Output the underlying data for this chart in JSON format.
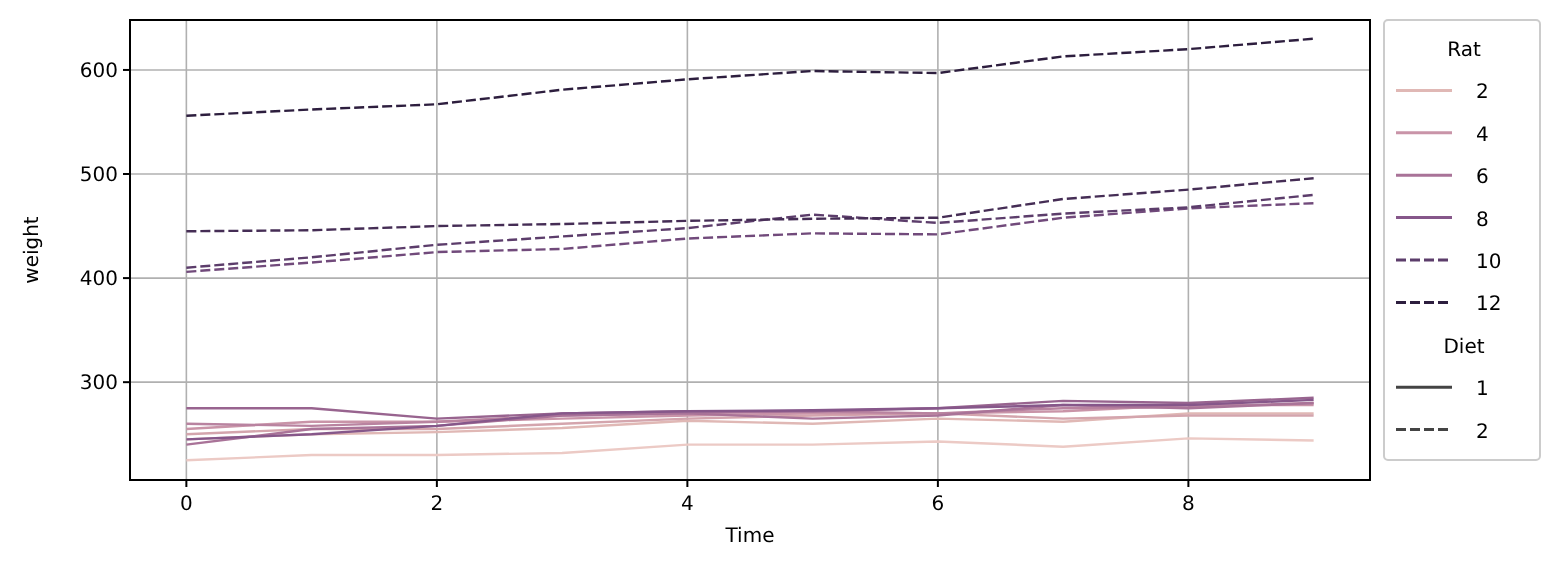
{
  "chart_data": {
    "type": "line",
    "xlabel": "Time",
    "ylabel": "weight",
    "legend_title": "Rat",
    "annotations": [
      "Diet"
    ],
    "x": [
      0,
      1,
      2,
      3,
      4,
      5,
      6,
      7,
      8,
      9
    ],
    "xlim": [
      -0.45,
      9.45
    ],
    "xticks": [
      0,
      2,
      4,
      6,
      8
    ],
    "ylim": [
      206,
      648
    ],
    "yticks": [
      300,
      400,
      500,
      600
    ],
    "grid": true,
    "legend": "right",
    "series": [
      {
        "color": "#eccac5",
        "line_style": "solid",
        "values": [
          225,
          230,
          230,
          232,
          240,
          240,
          243,
          238,
          246,
          244
        ]
      },
      {
        "name": "2",
        "color": "#e0b8b5",
        "line_style": "solid",
        "values": [
          245,
          250,
          252,
          256,
          263,
          260,
          265,
          262,
          270,
          270
        ]
      },
      {
        "color": "#d4a5ad",
        "line_style": "solid",
        "values": [
          250,
          255,
          255,
          260,
          265,
          268,
          270,
          265,
          268,
          268
        ]
      },
      {
        "name": "4",
        "color": "#c994a8",
        "line_style": "solid",
        "values": [
          255,
          262,
          262,
          265,
          268,
          270,
          270,
          272,
          278,
          278
        ]
      },
      {
        "color": "#b983a0",
        "line_style": "solid",
        "values": [
          260,
          258,
          262,
          268,
          270,
          272,
          270,
          275,
          276,
          280
        ]
      },
      {
        "name": "6",
        "color": "#a97398",
        "line_style": "solid",
        "values": [
          240,
          255,
          258,
          268,
          270,
          265,
          268,
          278,
          275,
          280
        ]
      },
      {
        "color": "#98648f",
        "line_style": "solid",
        "values": [
          275,
          275,
          265,
          270,
          272,
          272,
          275,
          282,
          280,
          285
        ]
      },
      {
        "name": "8",
        "color": "#86578a",
        "line_style": "solid",
        "values": [
          245,
          250,
          258,
          270,
          272,
          273,
          275,
          278,
          278,
          283
        ]
      },
      {
        "color": "#714a7b",
        "line_style": "dashed",
        "values": [
          406,
          415,
          425,
          428,
          438,
          443,
          442,
          458,
          467,
          472
        ]
      },
      {
        "name": "10",
        "color": "#5c3d6b",
        "line_style": "dashed",
        "values": [
          410,
          420,
          432,
          440,
          448,
          461,
          453,
          462,
          468,
          480
        ]
      },
      {
        "color": "#452d55",
        "line_style": "dashed",
        "values": [
          445,
          446,
          450,
          452,
          455,
          457,
          458,
          476,
          485,
          496
        ]
      },
      {
        "name": "12",
        "color": "#2d1e3e",
        "line_style": "dashed",
        "values": [
          556,
          562,
          567,
          581,
          591,
          599,
          597,
          613,
          620,
          630
        ]
      },
      {
        "name": "1",
        "color": "#444444",
        "line_style": "solid",
        "values": [
          null,
          null,
          null,
          null,
          null,
          null,
          null,
          null,
          null,
          null
        ]
      },
      {
        "name": "2",
        "color": "#444444",
        "line_style": "dashed",
        "values": [
          null,
          null,
          null,
          null,
          null,
          null,
          null,
          null,
          null,
          null
        ]
      }
    ]
  }
}
